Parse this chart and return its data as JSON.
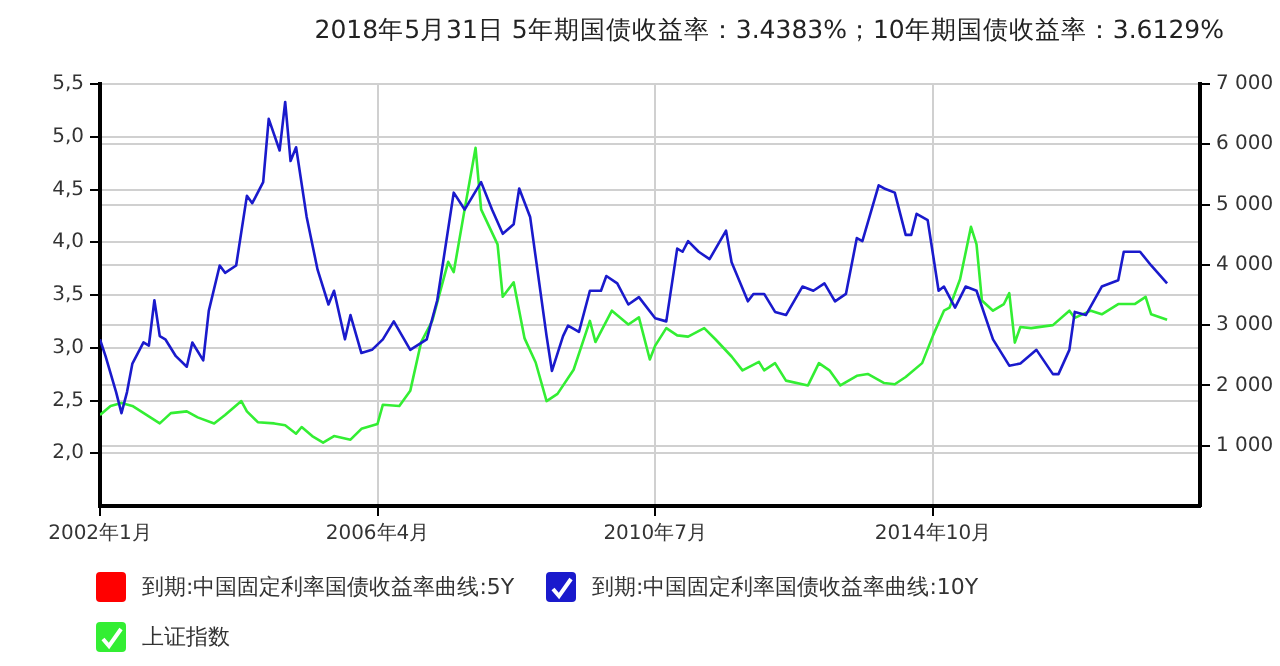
{
  "chart_data": {
    "type": "line",
    "title": "2018年5月31日 5年期国债收益率：3.4383%；10年期国债收益率：3.6129%",
    "xlim": [
      "2002-01",
      "2018-11"
    ],
    "xticks": [
      {
        "value": "2002-01",
        "label": "2002年1月"
      },
      {
        "value": "2006-04",
        "label": "2006年4月"
      },
      {
        "value": "2010-07",
        "label": "2010年7月"
      },
      {
        "value": "2014-10",
        "label": "2014年10月"
      }
    ],
    "ylim": [
      1.5,
      5.5
    ],
    "yticks": [
      {
        "value": 2,
        "label": "2,0"
      },
      {
        "value": 2.5,
        "label": "2,5"
      },
      {
        "value": 3,
        "label": "3,0"
      },
      {
        "value": 3.5,
        "label": "3,5"
      },
      {
        "value": 4,
        "label": "4,0"
      },
      {
        "value": 4.5,
        "label": "4,5"
      },
      {
        "value": 5,
        "label": "5,0"
      },
      {
        "value": 5.5,
        "label": "5,5"
      }
    ],
    "y2lim": [
      0,
      7000
    ],
    "y2ticks": [
      {
        "value": 1000,
        "label": "1 000"
      },
      {
        "value": 2000,
        "label": "2 000"
      },
      {
        "value": 3000,
        "label": "3 000"
      },
      {
        "value": 4000,
        "label": "4 000"
      },
      {
        "value": 5000,
        "label": "5 000"
      },
      {
        "value": 6000,
        "label": "6 000"
      },
      {
        "value": 7000,
        "label": "7 000"
      }
    ],
    "grid": true,
    "legend": "bottom",
    "marker": "none",
    "line_style": "solid",
    "series": [
      {
        "name": "到期:中国固定利率国债收益率曲线:5Y",
        "color": "#ff0000"
      },
      {
        "name": "到期:中国固定利率国债收益率曲线:10Y",
        "color": "#1a1acc",
        "x": [
          "2002-01",
          "2002-02",
          "2002-04",
          "2002-05",
          "2002-06",
          "2002-07",
          "2002-09",
          "2002-10",
          "2002-11",
          "2002-12",
          "2003-01",
          "2003-03",
          "2003-05",
          "2003-06",
          "2003-08",
          "2003-09",
          "2003-11",
          "2003-12",
          "2004-02",
          "2004-04",
          "2004-05",
          "2004-07",
          "2004-08",
          "2004-10",
          "2004-11",
          "2004-12",
          "2005-01",
          "2005-03",
          "2005-05",
          "2005-07",
          "2005-08",
          "2005-10",
          "2005-11",
          "2006-01",
          "2006-03",
          "2006-05",
          "2006-07",
          "2006-10",
          "2007-01",
          "2007-03",
          "2007-06",
          "2007-08",
          "2007-11",
          "2008-01",
          "2008-03",
          "2008-05",
          "2008-06",
          "2008-08",
          "2008-11",
          "2008-12",
          "2009-02",
          "2009-03",
          "2009-05",
          "2009-07",
          "2009-09",
          "2009-10",
          "2009-12",
          "2010-02",
          "2010-04",
          "2010-07",
          "2010-09",
          "2010-11",
          "2010-12",
          "2011-01",
          "2011-03",
          "2011-05",
          "2011-08",
          "2011-09",
          "2011-12",
          "2012-01",
          "2012-03",
          "2012-05",
          "2012-07",
          "2012-10",
          "2012-12",
          "2013-02",
          "2013-04",
          "2013-06",
          "2013-08",
          "2013-09",
          "2013-12",
          "2014-01",
          "2014-03",
          "2014-05",
          "2014-06",
          "2014-07",
          "2014-09",
          "2014-11",
          "2014-12",
          "2015-02",
          "2015-04",
          "2015-06",
          "2015-09",
          "2015-12",
          "2016-02",
          "2016-05",
          "2016-08",
          "2016-09",
          "2016-11",
          "2016-12",
          "2017-02",
          "2017-05",
          "2017-08",
          "2017-09",
          "2017-12",
          "2018-02",
          "2018-05"
        ],
        "values": [
          3.08,
          2.92,
          2.58,
          2.38,
          2.58,
          2.85,
          3.05,
          3.02,
          3.45,
          3.11,
          3.08,
          2.92,
          2.82,
          3.05,
          2.88,
          3.35,
          3.78,
          3.71,
          3.78,
          4.44,
          4.37,
          4.57,
          5.17,
          4.87,
          5.33,
          4.77,
          4.9,
          4.24,
          3.74,
          3.41,
          3.54,
          3.08,
          3.31,
          2.95,
          2.98,
          3.08,
          3.25,
          2.98,
          3.08,
          3.45,
          4.47,
          4.31,
          4.57,
          4.31,
          4.08,
          4.17,
          4.51,
          4.24,
          3.11,
          2.78,
          3.11,
          3.21,
          3.15,
          3.54,
          3.54,
          3.68,
          3.61,
          3.41,
          3.48,
          3.28,
          3.25,
          3.94,
          3.91,
          4.01,
          3.91,
          3.84,
          4.11,
          3.81,
          3.44,
          3.51,
          3.51,
          3.34,
          3.31,
          3.58,
          3.54,
          3.61,
          3.44,
          3.51,
          4.04,
          4.01,
          4.54,
          4.51,
          4.47,
          4.07,
          4.07,
          4.27,
          4.21,
          3.54,
          3.58,
          3.38,
          3.58,
          3.54,
          3.08,
          2.83,
          2.85,
          2.98,
          2.75,
          2.75,
          2.98,
          3.34,
          3.31,
          3.58,
          3.64,
          3.91,
          3.91,
          3.78,
          3.61
        ]
      },
      {
        "name": "上证指数",
        "color": "#33ee33",
        "axis": "y2",
        "x": [
          "2002-01",
          "2002-03",
          "2002-05",
          "2002-07",
          "2002-12",
          "2003-02",
          "2003-05",
          "2003-07",
          "2003-10",
          "2003-12",
          "2004-03",
          "2004-04",
          "2004-06",
          "2004-09",
          "2004-11",
          "2005-01",
          "2005-02",
          "2005-04",
          "2005-06",
          "2005-08",
          "2005-11",
          "2006-01",
          "2006-04",
          "2006-05",
          "2006-08",
          "2006-10",
          "2006-12",
          "2007-02",
          "2007-05",
          "2007-06",
          "2007-08",
          "2007-10",
          "2007-11",
          "2008-02",
          "2008-03",
          "2008-05",
          "2008-07",
          "2008-09",
          "2008-11",
          "2009-01",
          "2009-04",
          "2009-07",
          "2009-08",
          "2009-11",
          "2010-02",
          "2010-04",
          "2010-06",
          "2010-07",
          "2010-09",
          "2010-11",
          "2011-01",
          "2011-04",
          "2011-06",
          "2011-09",
          "2011-11",
          "2012-02",
          "2012-03",
          "2012-05",
          "2012-07",
          "2012-11",
          "2013-01",
          "2013-03",
          "2013-05",
          "2013-08",
          "2013-10",
          "2014-01",
          "2014-03",
          "2014-05",
          "2014-08",
          "2014-10",
          "2014-12",
          "2015-01",
          "2015-03",
          "2015-05",
          "2015-06",
          "2015-07",
          "2015-09",
          "2015-11",
          "2015-12",
          "2016-01",
          "2016-02",
          "2016-04",
          "2016-08",
          "2016-11",
          "2016-12",
          "2017-03",
          "2017-05",
          "2017-08",
          "2017-11",
          "2018-01",
          "2018-02",
          "2018-05"
        ],
        "values": [
          1510,
          1660,
          1710,
          1660,
          1370,
          1540,
          1570,
          1470,
          1370,
          1510,
          1740,
          1570,
          1390,
          1370,
          1340,
          1200,
          1310,
          1160,
          1050,
          1160,
          1100,
          1280,
          1360,
          1680,
          1660,
          1910,
          2720,
          3070,
          4050,
          3880,
          4920,
          5940,
          4920,
          4340,
          3470,
          3710,
          2780,
          2380,
          1740,
          1860,
          2260,
          3070,
          2720,
          3240,
          3010,
          3130,
          2430,
          2660,
          2950,
          2830,
          2810,
          2950,
          2770,
          2480,
          2250,
          2390,
          2250,
          2370,
          2080,
          2000,
          2370,
          2250,
          2000,
          2160,
          2190,
          2040,
          2020,
          2140,
          2370,
          2830,
          3240,
          3290,
          3760,
          4630,
          4340,
          3410,
          3240,
          3350,
          3530,
          2710,
          2970,
          2950,
          3000,
          3240,
          3120,
          3240,
          3180,
          3350,
          3350,
          3470,
          3180,
          3090
        ]
      }
    ]
  }
}
